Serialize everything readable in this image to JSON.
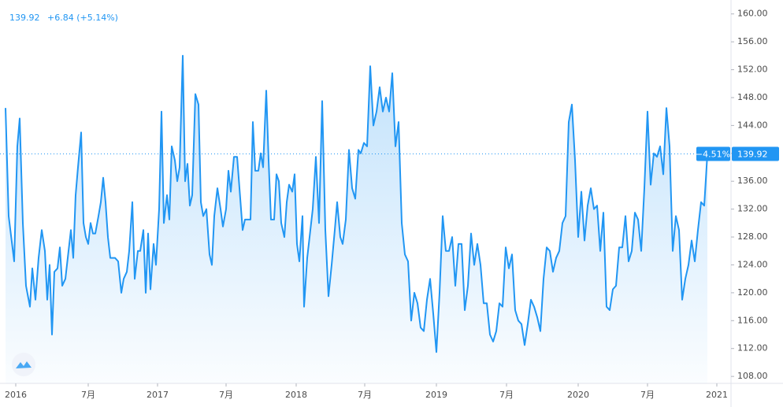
{
  "chart_data": {
    "type": "area-line",
    "header": {
      "price": "139.92",
      "change": "+6.84 (+5.14%)"
    },
    "price_line": {
      "value": 139.92,
      "label": "139.92",
      "change_label": "−4.51%"
    },
    "ylim": [
      107,
      162
    ],
    "yticks": [
      {
        "value": 108,
        "label": "108.00"
      },
      {
        "value": 112,
        "label": "112.00"
      },
      {
        "value": 116,
        "label": "116.00"
      },
      {
        "value": 120,
        "label": "120.00"
      },
      {
        "value": 124,
        "label": "124.00"
      },
      {
        "value": 128,
        "label": "128.00"
      },
      {
        "value": 132,
        "label": "132.00"
      },
      {
        "value": 136,
        "label": "136.00"
      },
      {
        "value": 140,
        "label": "140.00"
      },
      {
        "value": 144,
        "label": "144.00"
      },
      {
        "value": 148,
        "label": "148.00"
      },
      {
        "value": 152,
        "label": "152.00"
      },
      {
        "value": 156,
        "label": "156.00"
      },
      {
        "value": 160,
        "label": "160.00"
      }
    ],
    "xlim": [
      0,
      928
    ],
    "xticks": [
      {
        "value": 20,
        "label": "2016"
      },
      {
        "value": 112,
        "label": "7月"
      },
      {
        "value": 200,
        "label": "2017"
      },
      {
        "value": 287,
        "label": "7月"
      },
      {
        "value": 376,
        "label": "2018"
      },
      {
        "value": 463,
        "label": "7月"
      },
      {
        "value": 554,
        "label": "2019"
      },
      {
        "value": 643,
        "label": "7月"
      },
      {
        "value": 734,
        "label": "2020"
      },
      {
        "value": 822,
        "label": "7月"
      },
      {
        "value": 910,
        "label": "2021"
      }
    ],
    "grid": false,
    "series": [
      {
        "color": "#2196f3",
        "x": [
          7,
          11,
          18,
          22,
          25,
          29,
          33,
          38,
          41,
          45,
          49,
          53,
          57,
          60,
          63,
          66,
          69,
          73,
          76,
          79,
          83,
          86,
          90,
          93,
          96,
          99,
          103,
          106,
          109,
          112,
          115,
          118,
          121,
          125,
          128,
          131,
          134,
          137,
          140,
          146,
          150,
          154,
          157,
          161,
          164,
          168,
          171,
          175,
          178,
          182,
          185,
          188,
          191,
          195,
          198,
          202,
          205,
          208,
          212,
          215,
          218,
          222,
          225,
          228,
          232,
          235,
          238,
          241,
          244,
          248,
          252,
          255,
          258,
          262,
          266,
          269,
          272,
          276,
          280,
          283,
          287,
          290,
          293,
          297,
          301,
          304,
          308,
          311,
          315,
          318,
          321,
          324,
          328,
          331,
          334,
          338,
          341,
          344,
          348,
          351,
          354,
          357,
          361,
          364,
          367,
          371,
          374,
          377,
          380,
          384,
          386,
          390,
          393,
          397,
          401,
          405,
          409,
          413,
          417,
          421,
          425,
          428,
          432,
          435,
          439,
          443,
          447,
          451,
          455,
          458,
          462,
          466,
          470,
          474,
          478,
          482,
          486,
          490,
          494,
          498,
          502,
          506,
          510,
          514,
          518,
          522,
          526,
          530,
          534,
          538,
          542,
          546,
          550,
          554,
          558,
          562,
          566,
          570,
          574,
          578,
          582,
          586,
          590,
          594,
          598,
          602,
          606,
          610,
          614,
          618,
          622,
          626,
          630,
          634,
          638,
          642,
          646,
          650,
          654,
          658,
          662,
          666,
          670,
          674,
          678,
          682,
          686,
          690,
          694,
          698,
          702,
          706,
          710,
          714,
          718,
          722,
          726,
          730,
          734,
          738,
          742,
          746,
          750,
          754,
          758,
          762,
          766,
          770,
          774,
          778,
          782,
          786,
          790,
          794,
          798,
          802,
          806,
          810,
          814,
          818,
          822,
          826,
          830,
          834,
          838,
          842,
          846,
          850,
          854,
          858,
          862,
          866,
          870,
          874,
          878,
          882,
          886,
          890,
          894,
          898
        ],
        "values": [
          146.5,
          131,
          124.5,
          141,
          145,
          130,
          121,
          118,
          123.5,
          119,
          125,
          129,
          126,
          119,
          124,
          114,
          123,
          123.5,
          126.5,
          121,
          122,
          125,
          129,
          125,
          134,
          138,
          143,
          130,
          128,
          127,
          130,
          128.5,
          128.5,
          131,
          133,
          136.5,
          133,
          128,
          125,
          125,
          124.5,
          120,
          122,
          123,
          126,
          133,
          122,
          126,
          126,
          129,
          120,
          128.5,
          120.5,
          127,
          124,
          132,
          146,
          130,
          134,
          130.5,
          141,
          139,
          136,
          138,
          154,
          136,
          138.5,
          132.5,
          134,
          148.5,
          147,
          133,
          131,
          132,
          125.5,
          124,
          131,
          135,
          132,
          129.5,
          132,
          137.5,
          134.5,
          139.5,
          139.5,
          135,
          129,
          130.5,
          130.5,
          130.5,
          144.5,
          137.5,
          137.5,
          140,
          138,
          149,
          139,
          130.5,
          130.5,
          137,
          136,
          130,
          128,
          133,
          135.5,
          134.5,
          137,
          127,
          124.5,
          131,
          118,
          125,
          128,
          132,
          139.5,
          130,
          147.5,
          129,
          119.5,
          124,
          129,
          133,
          128,
          127,
          130.5,
          140.5,
          135,
          133.5,
          140.5,
          140,
          141.5,
          141,
          152.5,
          144,
          146,
          149.5,
          146,
          148,
          146,
          151.5,
          141,
          144.5,
          130,
          125.5,
          124.5,
          116,
          120,
          118.5,
          115,
          114.5,
          119,
          122,
          117,
          111.5,
          120,
          131,
          126,
          126,
          128,
          121,
          127,
          127,
          117.5,
          121,
          128.5,
          124,
          127,
          124,
          118.5,
          118.5,
          114,
          113,
          114.5,
          118.5,
          118,
          126.5,
          123.5,
          125.5,
          117.5,
          116,
          115.5,
          112.5,
          115.5,
          119,
          118,
          116.5,
          114.5,
          122,
          126.5,
          126,
          123,
          125,
          126,
          130,
          131,
          144.5,
          147,
          139,
          128,
          134.5,
          127.5,
          132.5,
          135,
          132,
          132.5,
          126,
          131.5,
          118,
          117.5,
          120.5,
          121,
          126.5,
          126.5,
          131,
          124.5,
          126,
          131.5,
          130.5,
          126,
          135,
          146,
          135.5,
          140,
          139.5,
          141,
          137,
          146.5,
          141,
          126,
          131,
          129,
          119,
          122,
          124,
          127.5,
          124.5,
          129,
          133,
          132.5,
          139.92
        ]
      }
    ]
  }
}
